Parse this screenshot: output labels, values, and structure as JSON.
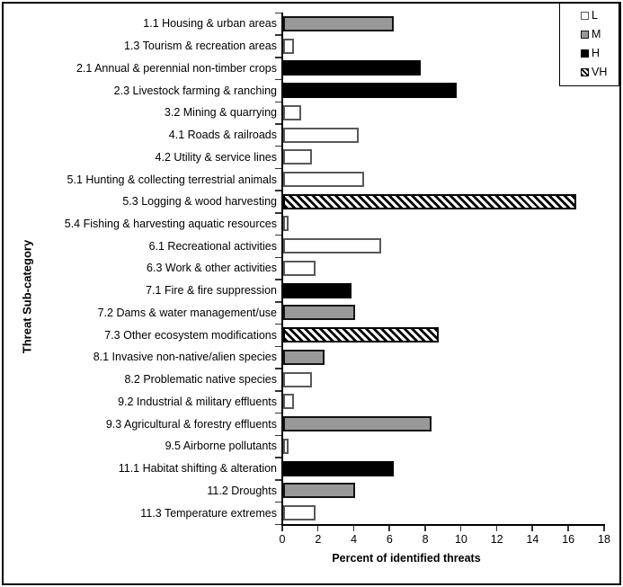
{
  "figure": {
    "title": ""
  },
  "legend": {
    "items": [
      {
        "label": "L",
        "level": "L"
      },
      {
        "label": "M",
        "level": "M"
      },
      {
        "label": "H",
        "level": "H"
      },
      {
        "label": "VH",
        "level": "VH"
      }
    ]
  },
  "chart_data": {
    "type": "bar",
    "orientation": "horizontal",
    "title": "",
    "xlabel": "Percent of identified threats",
    "ylabel": "Threat Sub-category",
    "xlim": [
      0,
      18
    ],
    "xticks": [
      0,
      2,
      4,
      6,
      8,
      10,
      12,
      14,
      16,
      18
    ],
    "grid": false,
    "legend_position": "top-right",
    "legend_labels": [
      "L",
      "M",
      "H",
      "VH"
    ],
    "level_colors": {
      "L": "#ffffff",
      "M": "#999999",
      "H": "#000000",
      "VH": "diagonal-hatch"
    },
    "categories": [
      "1.1 Housing & urban areas",
      "1.3 Tourism & recreation areas",
      "2.1 Annual & perennial non-timber crops",
      "2.3 Livestock farming & ranching",
      "3.2 Mining & quarrying",
      "4.1 Roads & railroads",
      "4.2 Utility & service lines",
      "5.1 Hunting & collecting terrestrial animals",
      "5.3 Logging & wood harvesting",
      "5.4 Fishing & harvesting aquatic resources",
      "6.1 Recreational activities",
      "6.3 Work & other activities",
      "7.1 Fire & fire suppression",
      "7.2 Dams & water management/use",
      "7.3 Other ecosystem modifications",
      "8.1 Invasive non-native/alien species",
      "8.2 Problematic native species",
      "9.2 Industrial & military effluents",
      "9.3 Agricultural & forestry effluents",
      "9.5 Airborne pollutants",
      "11.1 Habitat shifting & alteration",
      "11.2 Droughts",
      "11.3 Temperature extremes"
    ],
    "values": [
      6.2,
      0.6,
      7.7,
      9.7,
      1.0,
      4.2,
      1.6,
      4.5,
      16.4,
      0.3,
      5.5,
      1.8,
      3.8,
      4.0,
      8.7,
      2.3,
      1.6,
      0.6,
      8.3,
      0.3,
      6.2,
      4.0,
      1.8
    ],
    "levels": [
      "M",
      "L",
      "H",
      "H",
      "L",
      "L",
      "L",
      "L",
      "VH",
      "L",
      "L",
      "L",
      "H",
      "M",
      "VH",
      "M",
      "L",
      "L",
      "M",
      "L",
      "H",
      "M",
      "L"
    ]
  }
}
